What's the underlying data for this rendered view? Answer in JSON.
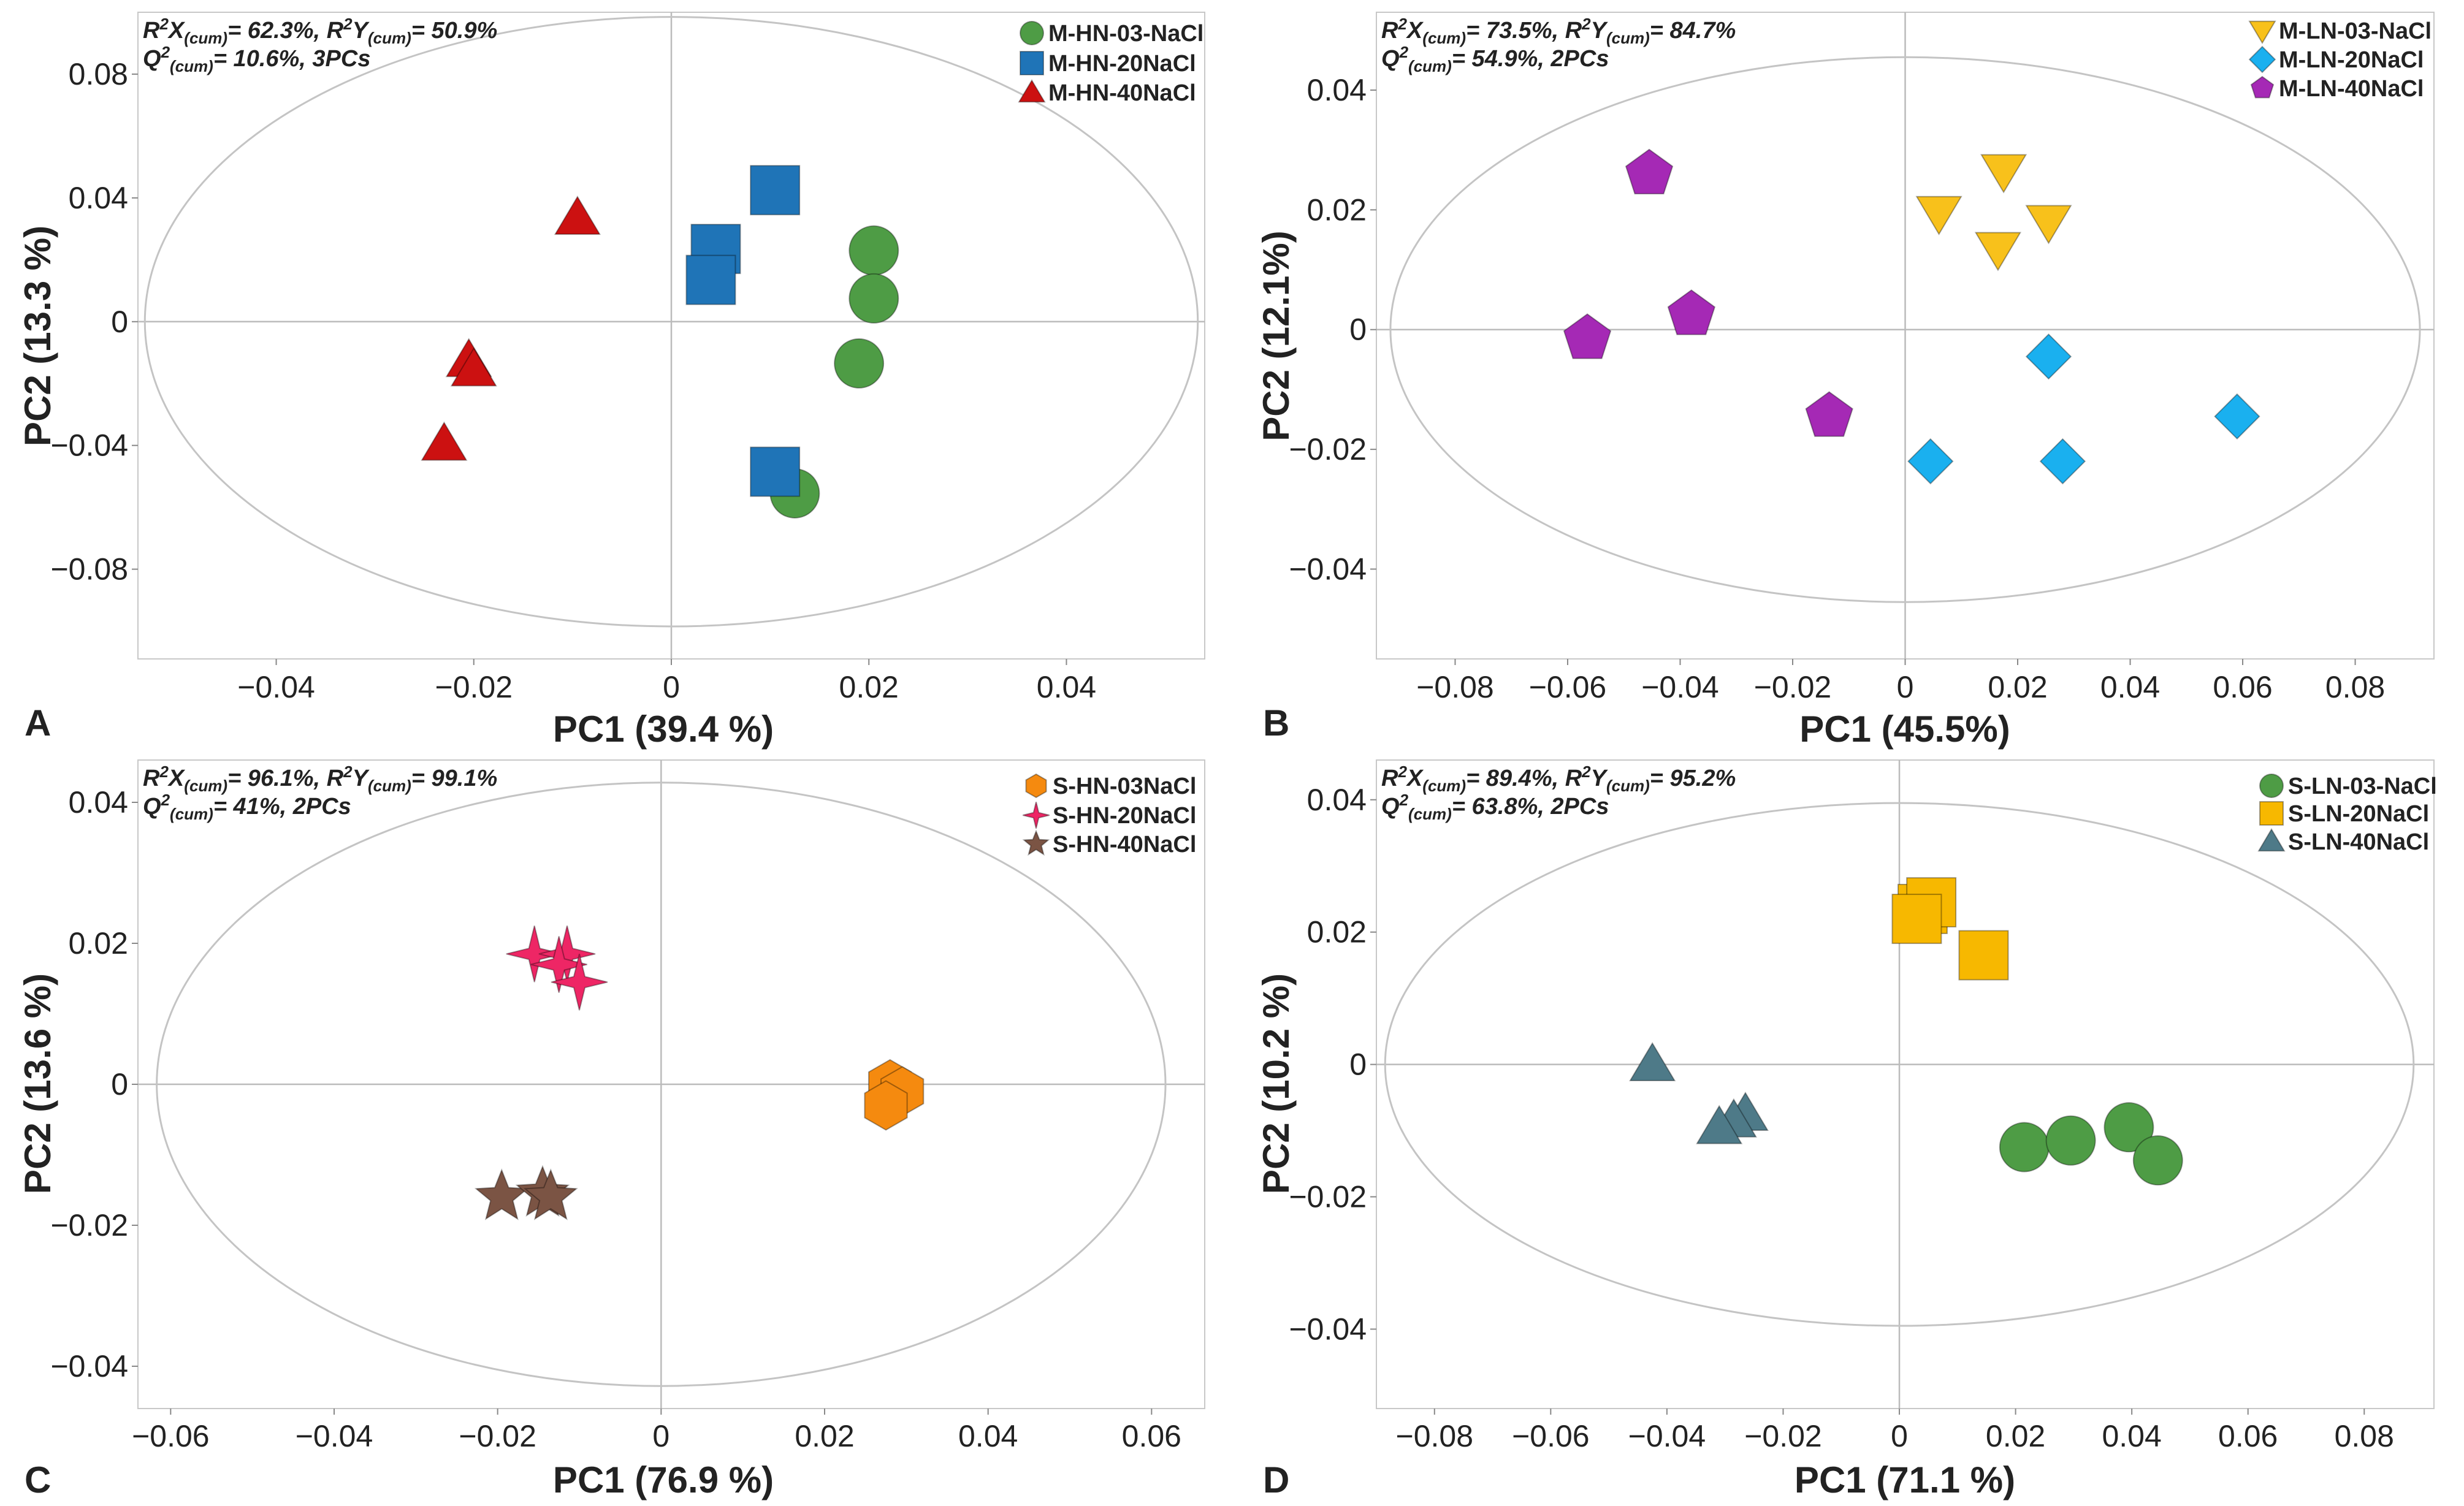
{
  "colors": {
    "green": "#4e9c45",
    "blue": "#1f74b7",
    "red": "#cc1111",
    "yellow": "#f8c11b",
    "cyan": "#1ab0ef",
    "purple": "#a529b5",
    "orange": "#f58a0f",
    "pink": "#ee2665",
    "brown": "#7b5444",
    "slate": "#4e7a88",
    "gold": "#f7b800"
  },
  "chart_data": [
    {
      "panel": "A",
      "type": "scatter",
      "xlabel": "PC1 (39.4 %)",
      "ylabel": "PC2 (13.3 %)",
      "xlim": [
        -0.054,
        0.054
      ],
      "ylim": [
        -0.109,
        0.1
      ],
      "xticks": [
        {
          "v": -0.04,
          "label": "−0.04"
        },
        {
          "v": -0.02,
          "label": "−0.02"
        },
        {
          "v": 0,
          "label": "0"
        },
        {
          "v": 0.02,
          "label": "0.02"
        },
        {
          "v": 0.04,
          "label": "0.04"
        }
      ],
      "yticks": [
        {
          "v": 0.08,
          "label": "0.08"
        },
        {
          "v": 0.04,
          "label": "0.04"
        },
        {
          "v": 0,
          "label": "0"
        },
        {
          "v": -0.04,
          "label": "−0.04"
        },
        {
          "v": -0.08,
          "label": "−0.08"
        }
      ],
      "ellipse": {
        "rx": 0.0533,
        "ry": 0.0985
      },
      "stats_line1": {
        "pre1": "R",
        "sup1": "2",
        "mid1": "X",
        "sub1": "(cum)",
        "val1": "= 62.3%, ",
        "pre2": "R",
        "sup2": "2",
        "mid2": "Y",
        "sub2": "(cum)",
        "val2": "= 50.9%"
      },
      "stats_line2": {
        "pre": "Q",
        "sup": "2",
        "sub": "(cum)",
        "val": "= 10.6%, 3PCs"
      },
      "series": [
        {
          "name": "M-HN-03-NaCl",
          "shape": "circle",
          "color": "green",
          "points": [
            [
              0.0205,
              0.023
            ],
            [
              0.0205,
              0.0075
            ],
            [
              0.019,
              -0.0135
            ],
            [
              0.0125,
              -0.0555
            ]
          ]
        },
        {
          "name": "M-HN-20NaCl",
          "shape": "square",
          "color": "blue",
          "points": [
            [
              0.0105,
              0.0425
            ],
            [
              0.0045,
              0.0235
            ],
            [
              0.004,
              0.0135
            ],
            [
              0.0105,
              -0.0485
            ]
          ]
        },
        {
          "name": "M-HN-40NaCl",
          "shape": "triangle",
          "color": "red",
          "points": [
            [
              -0.0095,
              0.0335
            ],
            [
              -0.0205,
              -0.0125
            ],
            [
              -0.02,
              -0.0155
            ],
            [
              -0.023,
              -0.0395
            ]
          ]
        }
      ]
    },
    {
      "panel": "B",
      "type": "scatter",
      "xlabel": "PC1 (45.5%)",
      "ylabel": "PC2 (12.1%)",
      "xlim": [
        -0.094,
        0.094
      ],
      "ylim": [
        -0.055,
        0.053
      ],
      "xticks": [
        {
          "v": -0.08,
          "label": "−0.08"
        },
        {
          "v": -0.06,
          "label": "−0.06"
        },
        {
          "v": -0.04,
          "label": "−0.04"
        },
        {
          "v": -0.02,
          "label": "−0.02"
        },
        {
          "v": 0,
          "label": "0"
        },
        {
          "v": 0.02,
          "label": "0.02"
        },
        {
          "v": 0.04,
          "label": "0.04"
        },
        {
          "v": 0.06,
          "label": "0.06"
        },
        {
          "v": 0.08,
          "label": "0.08"
        }
      ],
      "yticks": [
        {
          "v": 0.04,
          "label": "0.04"
        },
        {
          "v": 0.02,
          "label": "0.02"
        },
        {
          "v": 0,
          "label": "0"
        },
        {
          "v": -0.02,
          "label": "−0.02"
        },
        {
          "v": -0.04,
          "label": "−0.04"
        }
      ],
      "ellipse": {
        "rx": 0.0915,
        "ry": 0.0455
      },
      "stats_line1": {
        "pre1": "R",
        "sup1": "2",
        "mid1": "X",
        "sub1": "(cum)",
        "val1": "= 73.5%, ",
        "pre2": "R",
        "sup2": "2",
        "mid2": "Y",
        "sub2": "(cum)",
        "val2": "= 84.7%"
      },
      "stats_line2": {
        "pre": "Q",
        "sup": "2",
        "sub": "(cum)",
        "val": "= 54.9%, 2PCs"
      },
      "series": [
        {
          "name": "M-LN-03-NaCl",
          "shape": "triangle-down",
          "color": "yellow",
          "points": [
            [
              0.0175,
              0.0265
            ],
            [
              0.006,
              0.0195
            ],
            [
              0.0255,
              0.018
            ],
            [
              0.0165,
              0.0135
            ]
          ]
        },
        {
          "name": "M-LN-20NaCl",
          "shape": "diamond",
          "color": "cyan",
          "points": [
            [
              0.0255,
              -0.0045
            ],
            [
              0.059,
              -0.0145
            ],
            [
              0.0045,
              -0.022
            ],
            [
              0.028,
              -0.022
            ]
          ]
        },
        {
          "name": "M-LN-40NaCl",
          "shape": "pentagon",
          "color": "purple",
          "points": [
            [
              -0.0455,
              0.026
            ],
            [
              -0.038,
              0.0025
            ],
            [
              -0.0565,
              -0.0015
            ],
            [
              -0.0135,
              -0.0145
            ]
          ]
        }
      ]
    },
    {
      "panel": "C",
      "type": "scatter",
      "xlabel": "PC1 (76.9 %)",
      "ylabel": "PC2 (13.6 %)",
      "xlim": [
        -0.064,
        0.0665
      ],
      "ylim": [
        -0.046,
        0.046
      ],
      "xticks": [
        {
          "v": -0.06,
          "label": "−0.06"
        },
        {
          "v": -0.04,
          "label": "−0.04"
        },
        {
          "v": -0.02,
          "label": "−0.02"
        },
        {
          "v": 0,
          "label": "0"
        },
        {
          "v": 0.02,
          "label": "0.02"
        },
        {
          "v": 0.04,
          "label": "0.04"
        },
        {
          "v": 0.06,
          "label": "0.06"
        }
      ],
      "yticks": [
        {
          "v": 0.04,
          "label": "0.04"
        },
        {
          "v": 0.02,
          "label": "0.02"
        },
        {
          "v": 0,
          "label": "0"
        },
        {
          "v": -0.02,
          "label": "−0.02"
        },
        {
          "v": -0.04,
          "label": "−0.04"
        }
      ],
      "ellipse": {
        "rx": 0.0617,
        "ry": 0.0428
      },
      "stats_line1": {
        "pre1": "R",
        "sup1": "2",
        "mid1": "X",
        "sub1": "(cum)",
        "val1": "= 96.1%, ",
        "pre2": "R",
        "sup2": "2",
        "mid2": "Y",
        "sub2": "(cum)",
        "val2": "= 99.1%"
      },
      "stats_line2": {
        "pre": "Q",
        "sup": "2",
        "sub": "(cum)",
        "val": "= 41%, 2PCs"
      },
      "series": [
        {
          "name": "S-HN-03NaCl",
          "shape": "hexagon",
          "color": "orange",
          "points": [
            [
              0.028,
              0.0
            ],
            [
              0.0295,
              -0.001
            ],
            [
              0.0275,
              -0.003
            ]
          ]
        },
        {
          "name": "S-HN-20NaCl",
          "shape": "star4",
          "color": "pink",
          "points": [
            [
              -0.0155,
              0.0185
            ],
            [
              -0.0115,
              0.0185
            ],
            [
              -0.0125,
              0.017
            ],
            [
              -0.01,
              0.0145
            ]
          ]
        },
        {
          "name": "S-HN-40NaCl",
          "shape": "star5",
          "color": "brown",
          "points": [
            [
              -0.0195,
              -0.016
            ],
            [
              -0.0145,
              -0.0155
            ],
            [
              -0.0135,
              -0.016
            ]
          ]
        }
      ]
    },
    {
      "panel": "D",
      "type": "scatter",
      "xlabel": "PC1 (71.1 %)",
      "ylabel": "PC2 (10.2  %)",
      "xlim": [
        -0.09,
        0.092
      ],
      "ylim": [
        -0.052,
        0.046
      ],
      "xticks": [
        {
          "v": -0.08,
          "label": "−0.08"
        },
        {
          "v": -0.06,
          "label": "−0.06"
        },
        {
          "v": -0.04,
          "label": "−0.04"
        },
        {
          "v": -0.02,
          "label": "−0.02"
        },
        {
          "v": 0,
          "label": "0"
        },
        {
          "v": 0.02,
          "label": "0.02"
        },
        {
          "v": 0.04,
          "label": "0.04"
        },
        {
          "v": 0.06,
          "label": "0.06"
        },
        {
          "v": 0.08,
          "label": "0.08"
        }
      ],
      "yticks": [
        {
          "v": 0.04,
          "label": "0.04"
        },
        {
          "v": 0.02,
          "label": "0.02"
        },
        {
          "v": 0,
          "label": "0"
        },
        {
          "v": -0.02,
          "label": "−0.02"
        },
        {
          "v": -0.04,
          "label": "−0.04"
        }
      ],
      "ellipse": {
        "rx": 0.0885,
        "ry": 0.0395
      },
      "stats_line1": {
        "pre1": "R",
        "sup1": "2",
        "mid1": "X",
        "sub1": "(cum)",
        "val1": "= 89.4%, ",
        "pre2": "R",
        "sup2": "2",
        "mid2": "Y",
        "sub2": "(cum)",
        "val2": "= 95.2%"
      },
      "stats_line2": {
        "pre": "Q",
        "sup": "2",
        "sub": "(cum)",
        "val": "= 63.8%, 2PCs"
      },
      "series": [
        {
          "name": "S-LN-03-NaCl",
          "shape": "circle",
          "color": "green",
          "points": [
            [
              0.0215,
              -0.0125
            ],
            [
              0.0295,
              -0.0115
            ],
            [
              0.0395,
              -0.0095
            ],
            [
              0.0445,
              -0.0145
            ]
          ]
        },
        {
          "name": "S-LN-20NaCl",
          "shape": "square",
          "color": "gold",
          "points": [
            [
              0.004,
              0.0235
            ],
            [
              0.0055,
              0.0245
            ],
            [
              0.003,
              0.022
            ],
            [
              0.0145,
              0.0165
            ]
          ]
        },
        {
          "name": "S-LN-40NaCl",
          "shape": "triangle",
          "color": "slate",
          "points": [
            [
              -0.0425,
              0.0
            ],
            [
              -0.0265,
              -0.0075
            ],
            [
              -0.0285,
              -0.0085
            ],
            [
              -0.031,
              -0.0095
            ]
          ]
        }
      ]
    }
  ]
}
